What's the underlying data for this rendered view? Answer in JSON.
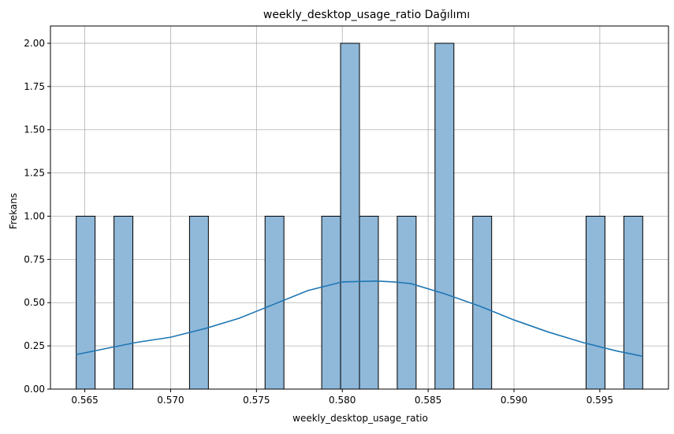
{
  "chart_data": {
    "type": "histogram",
    "title": "weekly_desktop_usage_ratio Dağılımı",
    "xlabel": "weekly_desktop_usage_ratio",
    "ylabel": "Frekans",
    "xlim": [
      0.563,
      0.599
    ],
    "ylim": [
      0,
      2.1
    ],
    "grid": true,
    "bin_width": 0.0011,
    "bins": [
      {
        "x0": 0.5645,
        "x1": 0.5656,
        "count": 1
      },
      {
        "x0": 0.5667,
        "x1": 0.5678,
        "count": 1
      },
      {
        "x0": 0.5711,
        "x1": 0.5722,
        "count": 1
      },
      {
        "x0": 0.5755,
        "x1": 0.5766,
        "count": 1
      },
      {
        "x0": 0.5788,
        "x1": 0.5799,
        "count": 1
      },
      {
        "x0": 0.5799,
        "x1": 0.581,
        "count": 2
      },
      {
        "x0": 0.581,
        "x1": 0.5821,
        "count": 1
      },
      {
        "x0": 0.5832,
        "x1": 0.5843,
        "count": 1
      },
      {
        "x0": 0.5854,
        "x1": 0.5865,
        "count": 2
      },
      {
        "x0": 0.5876,
        "x1": 0.5887,
        "count": 1
      },
      {
        "x0": 0.5942,
        "x1": 0.5953,
        "count": 1
      },
      {
        "x0": 0.5964,
        "x1": 0.5975,
        "count": 1
      }
    ],
    "kde": {
      "x": [
        0.5645,
        0.566,
        0.568,
        0.57,
        0.572,
        0.574,
        0.576,
        0.578,
        0.58,
        0.582,
        0.583,
        0.584,
        0.586,
        0.588,
        0.59,
        0.592,
        0.594,
        0.596,
        0.5975
      ],
      "y": [
        0.2,
        0.23,
        0.27,
        0.3,
        0.35,
        0.41,
        0.49,
        0.57,
        0.62,
        0.625,
        0.62,
        0.61,
        0.55,
        0.48,
        0.4,
        0.33,
        0.27,
        0.22,
        0.19
      ]
    },
    "xticks": [
      0.565,
      0.57,
      0.575,
      0.58,
      0.585,
      0.59,
      0.595
    ],
    "xtick_labels": [
      "0.565",
      "0.570",
      "0.575",
      "0.580",
      "0.585",
      "0.590",
      "0.595"
    ],
    "yticks": [
      0,
      0.25,
      0.5,
      0.75,
      1.0,
      1.25,
      1.5,
      1.75,
      2.0
    ],
    "ytick_labels": [
      "0.00",
      "0.25",
      "0.50",
      "0.75",
      "1.00",
      "1.25",
      "1.50",
      "1.75",
      "2.00"
    ],
    "colors": {
      "bar_fill": "#8fb8d9",
      "bar_edge": "#000000",
      "kde_line": "#1f77b4",
      "grid": "#b0b0b0"
    }
  }
}
